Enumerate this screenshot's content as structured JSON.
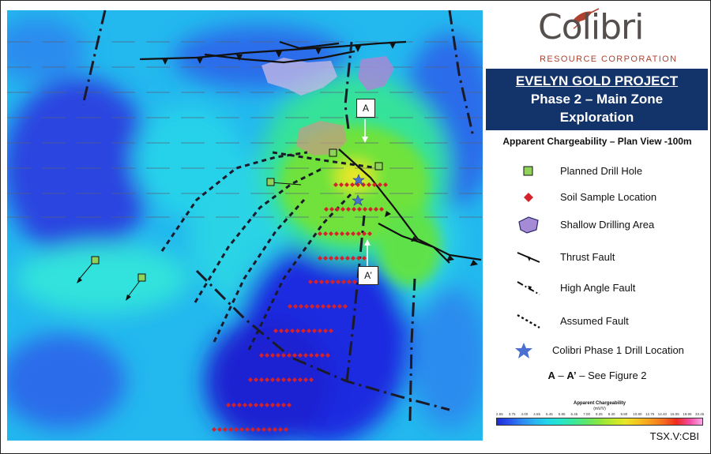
{
  "logo": {
    "word": "Colibri",
    "sub": "RESOURCE CORPORATION"
  },
  "title": {
    "line1": "EVELYN GOLD PROJECT",
    "line2": "Phase 2 – Main Zone",
    "line3": "Exploration"
  },
  "subtitle": "Apparent Chargeability – Plan View -100m",
  "legend": [
    {
      "symbol": "green-square-icon",
      "label": "Planned Drill Hole"
    },
    {
      "symbol": "red-diamond-icon",
      "label": "Soil Sample Location"
    },
    {
      "symbol": "purple-blob-icon",
      "label": "Shallow Drilling Area"
    },
    {
      "symbol": "thrust-fault-icon",
      "label": "Thrust Fault"
    },
    {
      "symbol": "high-angle-fault-icon",
      "label": "High Angle Fault"
    },
    {
      "symbol": "assumed-fault-icon",
      "label": "Assumed Fault"
    },
    {
      "symbol": "blue-star-icon",
      "label": "Colibri Phase 1 Drill Location"
    }
  ],
  "section_note": {
    "bold": "A",
    "dash": " – ",
    "bold2": "A’",
    "rest": " – See Figure 2"
  },
  "map_labels": {
    "a": "A",
    "a_prime": "A’"
  },
  "scale": {
    "title": "Apparent Chargeability",
    "unit": "(mV/V)",
    "ticks": [
      "2.55",
      "3.75",
      "4.00",
      "4.55",
      "5.45",
      "5.85",
      "6.45",
      "7.00",
      "8.25",
      "9.30",
      "9.80",
      "10.80",
      "12.75",
      "14.40",
      "16.05",
      "19.95",
      "33.45"
    ],
    "colors": [
      "#1d2bd6",
      "#2a55ee",
      "#2f8cf2",
      "#29b6f0",
      "#20d8e8",
      "#26e6c8",
      "#3be89a",
      "#5ee66a",
      "#8ce63e",
      "#bfe82a",
      "#e8e627",
      "#f6c21d",
      "#f79a1c",
      "#f46c1d",
      "#ef2a1f",
      "#f24ca0",
      "#f9a8e8"
    ]
  },
  "colors": {
    "title_bg": "#13346b",
    "drill_hole": "#8fd35b",
    "soil": "#d3222a",
    "star": "#4a6fd1",
    "shallow": "#a58ad6"
  },
  "ticker": "TSX.V:CBI"
}
